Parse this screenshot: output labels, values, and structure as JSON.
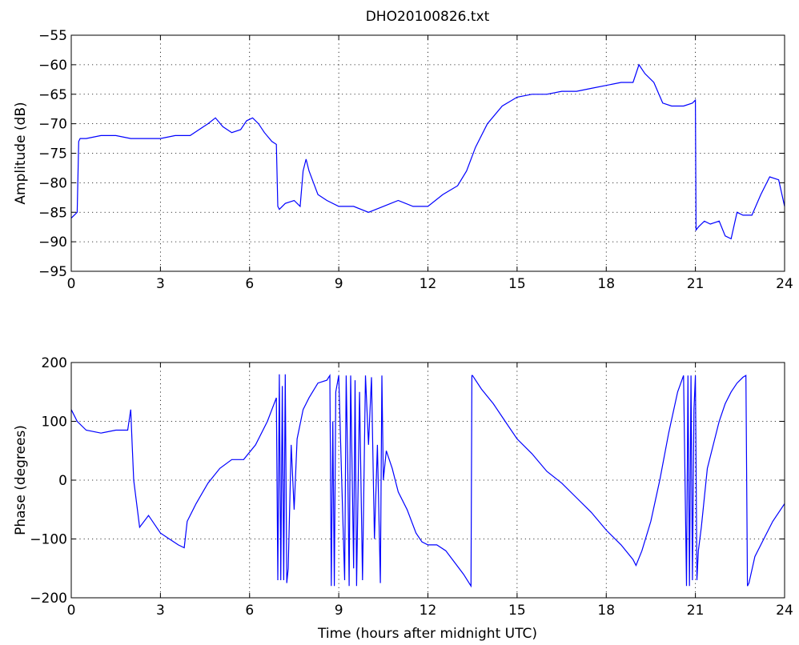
{
  "figure": {
    "title": "DHO20100826.txt",
    "xlabel": "Time (hours after midnight UTC)"
  },
  "chart_data": [
    {
      "type": "line",
      "title": "DHO20100826.txt",
      "xlabel": "",
      "ylabel": "Amplitude (dB)",
      "xlim": [
        0,
        24
      ],
      "ylim": [
        -95,
        -55
      ],
      "xticks": [
        0,
        3,
        6,
        9,
        12,
        15,
        18,
        21,
        24
      ],
      "yticks": [
        -95,
        -90,
        -85,
        -80,
        -75,
        -70,
        -65,
        -60,
        -55
      ],
      "grid": true,
      "color": "#0000ff",
      "series": [
        {
          "x": [
            0,
            0.1,
            0.2,
            0.25,
            0.3,
            0.5,
            1,
            1.5,
            2,
            2.5,
            3,
            3.5,
            4,
            4.3,
            4.6,
            4.85,
            5.1,
            5.4,
            5.7,
            5.9,
            6.1,
            6.3,
            6.5,
            6.75,
            6.9,
            6.95,
            7.0,
            7.2,
            7.5,
            7.7,
            7.8,
            7.9,
            8.0,
            8.3,
            8.6,
            9.0,
            9.5,
            10.0,
            10.5,
            11.0,
            11.5,
            12.0,
            12.5,
            13.0,
            13.3,
            13.6,
            14.0,
            14.5,
            15.0,
            15.5,
            16.0,
            16.5,
            17.0,
            17.5,
            18.0,
            18.5,
            18.9,
            19.1,
            19.3,
            19.6,
            19.9,
            20.2,
            20.6,
            20.9,
            21.0,
            21.02,
            21.1,
            21.3,
            21.5,
            21.8,
            22.0,
            22.2,
            22.4,
            22.6,
            22.9,
            23.2,
            23.5,
            23.8,
            24.0
          ],
          "y": [
            -86,
            -85.5,
            -85,
            -73,
            -72.5,
            -72.5,
            -72,
            -72,
            -72.5,
            -72.5,
            -72.5,
            -72,
            -72,
            -71,
            -70,
            -69,
            -70.5,
            -71.5,
            -71,
            -69.5,
            -69,
            -70,
            -71.5,
            -73,
            -73.5,
            -84,
            -84.5,
            -83.5,
            -83,
            -84,
            -78,
            -76,
            -78,
            -82,
            -83,
            -84,
            -84,
            -85,
            -84,
            -83,
            -84,
            -84,
            -82,
            -80.5,
            -78,
            -74,
            -70,
            -67,
            -65.5,
            -65,
            -65,
            -64.5,
            -64.5,
            -64,
            -63.5,
            -63,
            -63,
            -60,
            -61.5,
            -63,
            -66.5,
            -67,
            -67,
            -66.5,
            -66,
            -88,
            -87.5,
            -86.5,
            -87,
            -86.5,
            -89,
            -89.5,
            -85,
            -85.5,
            -85.5,
            -82,
            -79,
            -79.5,
            -84
          ]
        }
      ]
    },
    {
      "type": "line",
      "title": "",
      "xlabel": "Time (hours after midnight UTC)",
      "ylabel": "Phase (degrees)",
      "xlim": [
        0,
        24
      ],
      "ylim": [
        -200,
        200
      ],
      "xticks": [
        0,
        3,
        6,
        9,
        12,
        15,
        18,
        21,
        24
      ],
      "yticks": [
        -200,
        -100,
        0,
        100,
        200
      ],
      "grid": true,
      "color": "#0000ff",
      "series": [
        {
          "x": [
            0,
            0.2,
            0.5,
            1,
            1.5,
            1.9,
            2.0,
            2.05,
            2.1,
            2.3,
            2.6,
            3.0,
            3.3,
            3.6,
            3.8,
            3.9,
            4.2,
            4.6,
            5.0,
            5.4,
            5.8,
            6.2,
            6.6,
            6.9,
            6.95,
            7.0,
            7.05,
            7.1,
            7.15,
            7.2,
            7.25,
            7.3,
            7.4,
            7.5,
            7.6,
            7.8,
            8.0,
            8.3,
            8.6,
            8.7,
            8.75,
            8.8,
            8.85,
            8.9,
            9.0,
            9.1,
            9.2,
            9.25,
            9.3,
            9.35,
            9.4,
            9.5,
            9.55,
            9.6,
            9.7,
            9.8,
            9.9,
            10.0,
            10.1,
            10.2,
            10.3,
            10.4,
            10.45,
            10.5,
            10.6,
            10.8,
            11.0,
            11.3,
            11.6,
            11.8,
            12.0,
            12.3,
            12.6,
            12.9,
            13.2,
            13.45,
            13.48,
            13.5,
            13.8,
            14.2,
            14.6,
            15.0,
            15.5,
            16.0,
            16.5,
            17.0,
            17.5,
            18.0,
            18.5,
            18.9,
            19.0,
            19.2,
            19.5,
            19.8,
            20.1,
            20.4,
            20.6,
            20.7,
            20.75,
            20.8,
            20.85,
            20.9,
            20.95,
            21.0,
            21.05,
            21.1,
            21.2,
            21.4,
            21.6,
            21.8,
            22.0,
            22.2,
            22.4,
            22.6,
            22.7,
            22.75,
            22.8,
            23.0,
            23.3,
            23.6,
            24.0
          ],
          "y": [
            120,
            100,
            85,
            80,
            85,
            85,
            120,
            60,
            0,
            -80,
            -60,
            -90,
            -100,
            -110,
            -115,
            -70,
            -40,
            -5,
            20,
            35,
            35,
            60,
            100,
            140,
            -170,
            180,
            -170,
            160,
            -170,
            180,
            -175,
            -150,
            60,
            -50,
            70,
            120,
            140,
            165,
            170,
            178,
            -180,
            100,
            -180,
            150,
            178,
            0,
            -170,
            178,
            30,
            -180,
            178,
            -150,
            170,
            -180,
            150,
            -170,
            178,
            60,
            175,
            -100,
            60,
            -175,
            178,
            0,
            50,
            20,
            -20,
            -50,
            -90,
            -105,
            -110,
            -110,
            -120,
            -140,
            -160,
            -180,
            178,
            178,
            155,
            130,
            100,
            70,
            45,
            15,
            -5,
            -30,
            -55,
            -85,
            -110,
            -135,
            -145,
            -120,
            -70,
            0,
            80,
            150,
            178,
            -180,
            178,
            -180,
            178,
            -170,
            120,
            178,
            -170,
            -120,
            -80,
            20,
            60,
            100,
            130,
            150,
            165,
            175,
            178,
            -180,
            -175,
            -130,
            -100,
            -70,
            -40
          ]
        }
      ]
    }
  ]
}
